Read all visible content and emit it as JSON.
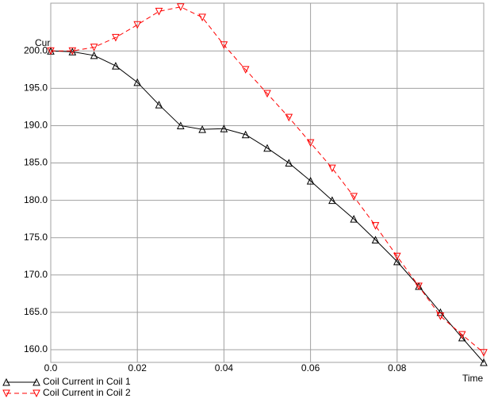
{
  "chart_data": {
    "type": "line",
    "y_label": "Current",
    "x_label": "Time",
    "x": [
      0,
      0.005,
      0.01,
      0.015,
      0.02,
      0.025,
      0.03,
      0.035,
      0.04,
      0.045,
      0.05,
      0.055,
      0.06,
      0.065,
      0.07,
      0.075,
      0.08,
      0.085,
      0.09,
      0.095,
      0.1
    ],
    "series": [
      {
        "name": "Coil Current in Coil 1",
        "color": "#000000",
        "marker": "triangle-up",
        "line_style": "solid",
        "values": [
          200,
          199.9,
          199.4,
          198.0,
          195.8,
          192.8,
          190.0,
          189.5,
          189.6,
          188.8,
          187.0,
          185.0,
          182.6,
          180.0,
          177.5,
          174.7,
          171.8,
          168.5,
          165.0,
          161.6,
          158.3
        ]
      },
      {
        "name": "Coil Current in Coil 2",
        "color": "#ff0000",
        "marker": "triangle-down",
        "line_style": "dashed",
        "values": [
          200,
          200.0,
          200.5,
          201.8,
          203.5,
          205.3,
          205.9,
          204.5,
          200.8,
          197.5,
          194.3,
          191.1,
          187.7,
          184.3,
          180.5,
          176.6,
          172.5,
          168.5,
          164.5,
          162.0,
          159.6
        ]
      }
    ],
    "xlim": [
      0,
      0.1
    ],
    "ylim": [
      158.3,
      206.4
    ],
    "xticks": [
      {
        "value": 0,
        "label": "0.0"
      },
      0.02,
      0.04,
      0.06,
      0.08
    ],
    "yticks": [
      {
        "value": 160,
        "label": "160.0"
      },
      {
        "value": 165,
        "label": "165.0"
      },
      {
        "value": 170,
        "label": "170.0"
      },
      {
        "value": 175,
        "label": "175.0"
      },
      {
        "value": 180,
        "label": "180.0"
      },
      {
        "value": 185,
        "label": "185.0"
      },
      {
        "value": 190,
        "label": "190.0"
      },
      {
        "value": 195,
        "label": "195.0"
      },
      {
        "value": 200,
        "label": "200.0"
      }
    ],
    "grid": true
  }
}
